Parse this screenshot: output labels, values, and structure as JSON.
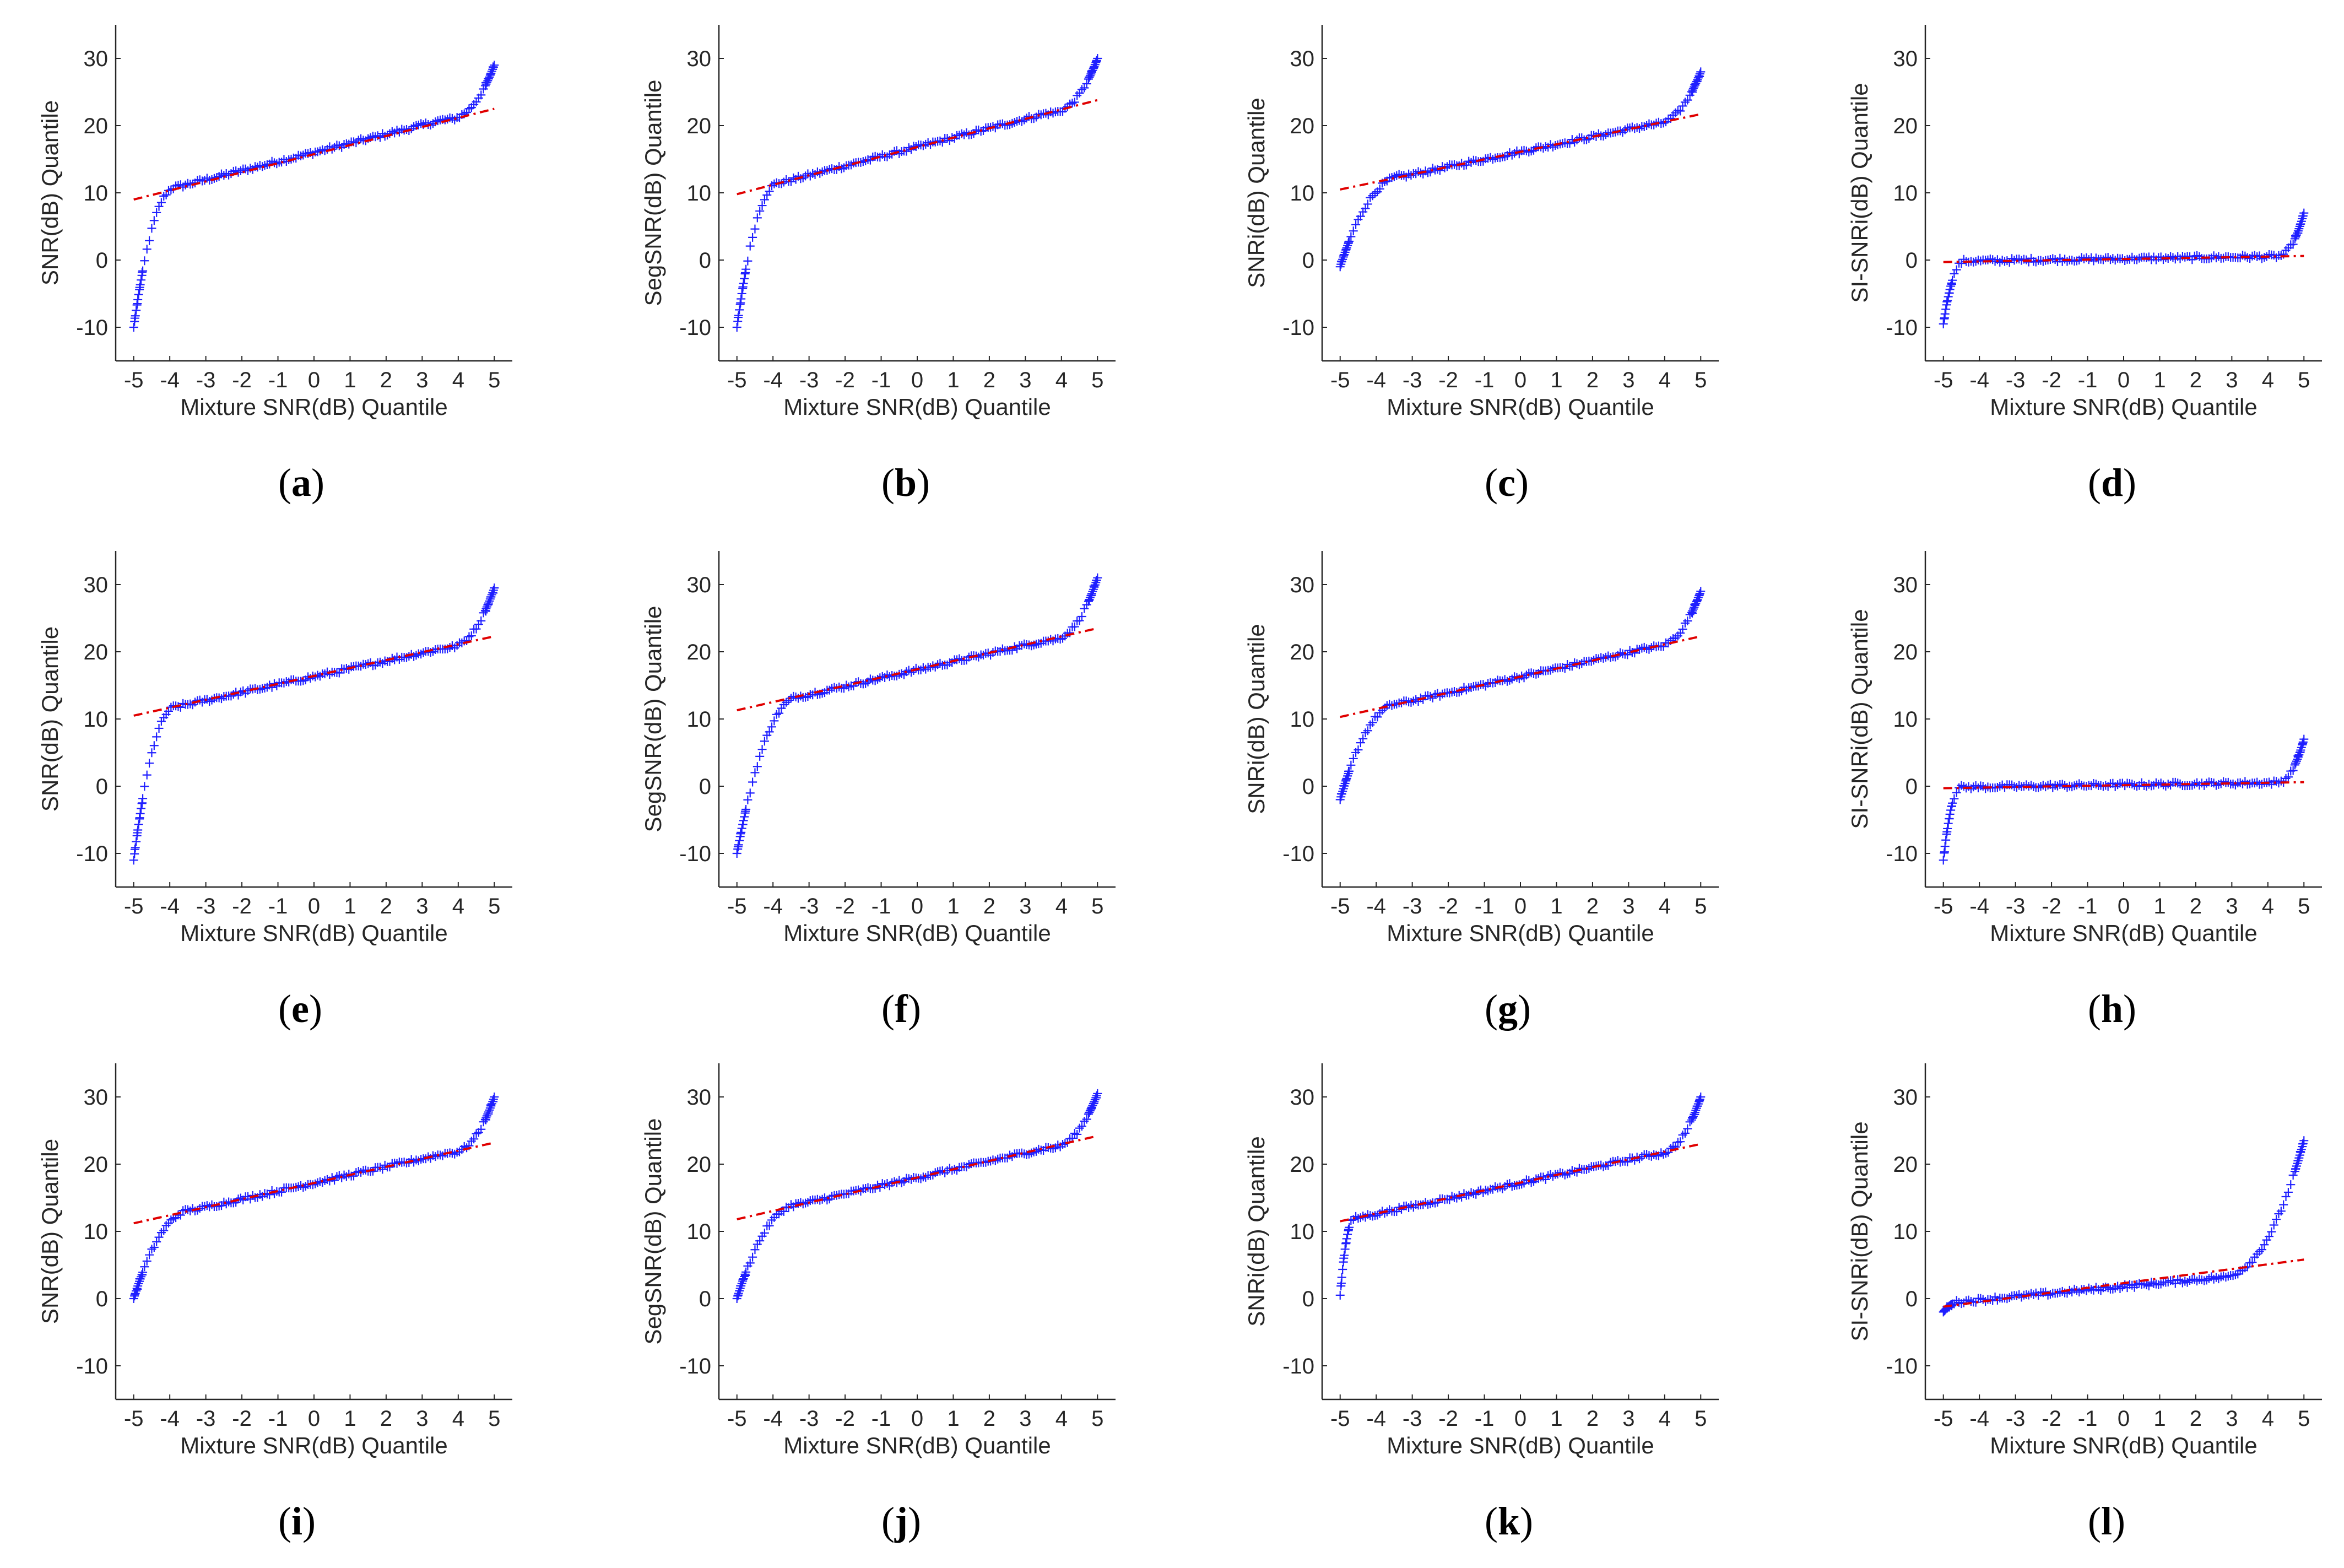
{
  "figure": {
    "colors": {
      "points": "#1f1fff",
      "fit": "#e00000",
      "axis": "#262626"
    }
  },
  "chart_data": [
    {
      "id": "a",
      "type": "scatter",
      "label": "a",
      "xlabel": "Mixture SNR(dB) Quantile",
      "ylabel": "SNR(dB) Quantile",
      "xlim": [
        -5.5,
        5.5
      ],
      "ylim": [
        -15,
        35
      ],
      "xticks": [
        -5,
        -4,
        -3,
        -2,
        -1,
        0,
        1,
        2,
        3,
        4,
        5
      ],
      "yticks": [
        -10,
        0,
        10,
        20,
        30
      ],
      "curve": {
        "xmin": -5,
        "xmax": 5,
        "median": 16.0,
        "slope": 1.35,
        "lowStart": -10,
        "lowKnee": -3.8,
        "highEnd": 29,
        "highKnee": 3.6
      },
      "fit": {
        "x": [
          -5,
          5
        ],
        "y": [
          9.0,
          22.5
        ]
      }
    },
    {
      "id": "b",
      "type": "scatter",
      "label": "b",
      "xlabel": "Mixture SNR(dB) Quantile",
      "ylabel": "SegSNR(dB) Quantile",
      "xlim": [
        -5.5,
        5.5
      ],
      "ylim": [
        -15,
        35
      ],
      "xticks": [
        -5,
        -4,
        -3,
        -2,
        -1,
        0,
        1,
        2,
        3,
        4,
        5
      ],
      "yticks": [
        -10,
        0,
        10,
        20,
        30
      ],
      "curve": {
        "xmin": -5,
        "xmax": 5,
        "median": 16.8,
        "slope": 1.4,
        "lowStart": -10,
        "lowKnee": -3.8,
        "highEnd": 30,
        "highKnee": 3.6
      },
      "fit": {
        "x": [
          -5,
          5
        ],
        "y": [
          9.8,
          23.8
        ]
      }
    },
    {
      "id": "c",
      "type": "scatter",
      "label": "c",
      "xlabel": "Mixture SNR(dB) Quantile",
      "ylabel": "SNRi(dB) Quantile",
      "xlim": [
        -5.5,
        5.5
      ],
      "ylim": [
        -15,
        35
      ],
      "xticks": [
        -5,
        -4,
        -3,
        -2,
        -1,
        0,
        1,
        2,
        3,
        4,
        5
      ],
      "yticks": [
        -10,
        0,
        10,
        20,
        30
      ],
      "curve": {
        "xmin": -5,
        "xmax": 5,
        "median": 16.1,
        "slope": 1.12,
        "lowStart": -1,
        "lowKnee": -3.2,
        "highEnd": 28,
        "highKnee": 3.6
      },
      "fit": {
        "x": [
          -5,
          5
        ],
        "y": [
          10.5,
          21.7
        ]
      }
    },
    {
      "id": "d",
      "type": "scatter",
      "label": "d",
      "xlabel": "Mixture SNR(dB) Quantile",
      "ylabel": "SI-SNRi(dB) Quantile",
      "xlim": [
        -5.5,
        5.5
      ],
      "ylim": [
        -15,
        35
      ],
      "xticks": [
        -5,
        -4,
        -3,
        -2,
        -1,
        0,
        1,
        2,
        3,
        4,
        5
      ],
      "yticks": [
        -10,
        0,
        10,
        20,
        30
      ],
      "curve": {
        "xmin": -5,
        "xmax": 5,
        "median": 0.2,
        "slope": 0.08,
        "lowStart": -9.5,
        "lowKnee": -4.4,
        "highEnd": 7,
        "highKnee": 4.2
      },
      "fit": {
        "x": [
          -5,
          5
        ],
        "y": [
          -0.3,
          0.6
        ]
      }
    },
    {
      "id": "e",
      "type": "scatter",
      "label": "e",
      "xlabel": "Mixture SNR(dB) Quantile",
      "ylabel": "SNR(dB) Quantile",
      "xlim": [
        -5.5,
        5.5
      ],
      "ylim": [
        -15,
        35
      ],
      "xticks": [
        -5,
        -4,
        -3,
        -2,
        -1,
        0,
        1,
        2,
        3,
        4,
        5
      ],
      "yticks": [
        -10,
        0,
        10,
        20,
        30
      ],
      "curve": {
        "xmin": -5,
        "xmax": 5,
        "median": 16.3,
        "slope": 1.18,
        "lowStart": -11,
        "lowKnee": -3.8,
        "highEnd": 29.5,
        "highKnee": 3.6
      },
      "fit": {
        "x": [
          -5,
          5
        ],
        "y": [
          10.5,
          22.3
        ]
      }
    },
    {
      "id": "f",
      "type": "scatter",
      "label": "f",
      "xlabel": "Mixture SNR(dB) Quantile",
      "ylabel": "SegSNR(dB) Quantile",
      "xlim": [
        -5.5,
        5.5
      ],
      "ylim": [
        -15,
        35
      ],
      "xticks": [
        -5,
        -4,
        -3,
        -2,
        -1,
        0,
        1,
        2,
        3,
        4,
        5
      ],
      "yticks": [
        -10,
        0,
        10,
        20,
        30
      ],
      "curve": {
        "xmin": -5,
        "xmax": 5,
        "median": 17.3,
        "slope": 1.22,
        "lowStart": -10,
        "lowKnee": -3.2,
        "highEnd": 31,
        "highKnee": 3.6
      },
      "fit": {
        "x": [
          -5,
          5
        ],
        "y": [
          11.3,
          23.5
        ]
      }
    },
    {
      "id": "g",
      "type": "scatter",
      "label": "g",
      "xlabel": "Mixture SNR(dB) Quantile",
      "ylabel": "SNRi(dB) Quantile",
      "xlim": [
        -5.5,
        5.5
      ],
      "ylim": [
        -15,
        35
      ],
      "xticks": [
        -5,
        -4,
        -3,
        -2,
        -1,
        0,
        1,
        2,
        3,
        4,
        5
      ],
      "yticks": [
        -10,
        0,
        10,
        20,
        30
      ],
      "curve": {
        "xmin": -5,
        "xmax": 5,
        "median": 16.3,
        "slope": 1.2,
        "lowStart": -2,
        "lowKnee": -3.3,
        "highEnd": 29,
        "highKnee": 3.6
      },
      "fit": {
        "x": [
          -5,
          5
        ],
        "y": [
          10.3,
          22.3
        ]
      }
    },
    {
      "id": "h",
      "type": "scatter",
      "label": "h",
      "xlabel": "Mixture SNR(dB) Quantile",
      "ylabel": "SI-SNRi(dB) Quantile",
      "xlim": [
        -5.5,
        5.5
      ],
      "ylim": [
        -15,
        35
      ],
      "xticks": [
        -5,
        -4,
        -3,
        -2,
        -1,
        0,
        1,
        2,
        3,
        4,
        5
      ],
      "yticks": [
        -10,
        0,
        10,
        20,
        30
      ],
      "curve": {
        "xmin": -5,
        "xmax": 5,
        "median": 0.2,
        "slope": 0.08,
        "lowStart": -11,
        "lowKnee": -4.5,
        "highEnd": 7,
        "highKnee": 4.2
      },
      "fit": {
        "x": [
          -5,
          5
        ],
        "y": [
          -0.3,
          0.6
        ]
      }
    },
    {
      "id": "i",
      "type": "scatter",
      "label": "i",
      "xlabel": "Mixture SNR(dB) Quantile",
      "ylabel": "SNR(dB) Quantile",
      "xlim": [
        -5.5,
        5.5
      ],
      "ylim": [
        -15,
        35
      ],
      "xticks": [
        -5,
        -4,
        -3,
        -2,
        -1,
        0,
        1,
        2,
        3,
        4,
        5
      ],
      "yticks": [
        -10,
        0,
        10,
        20,
        30
      ],
      "curve": {
        "xmin": -5,
        "xmax": 5,
        "median": 17.2,
        "slope": 1.2,
        "lowStart": 0,
        "lowKnee": -3.3,
        "highEnd": 30,
        "highKnee": 3.7
      },
      "fit": {
        "x": [
          -5,
          5
        ],
        "y": [
          11.2,
          23.2
        ]
      }
    },
    {
      "id": "j",
      "type": "scatter",
      "label": "j",
      "xlabel": "Mixture SNR(dB) Quantile",
      "ylabel": "SegSNR(dB) Quantile",
      "xlim": [
        -5.5,
        5.5
      ],
      "ylim": [
        -15,
        35
      ],
      "xticks": [
        -5,
        -4,
        -3,
        -2,
        -1,
        0,
        1,
        2,
        3,
        4,
        5
      ],
      "yticks": [
        -10,
        0,
        10,
        20,
        30
      ],
      "curve": {
        "xmin": -5,
        "xmax": 5,
        "median": 18.0,
        "slope": 1.22,
        "lowStart": 0,
        "lowKnee": -3.2,
        "highEnd": 30.5,
        "highKnee": 3.6
      },
      "fit": {
        "x": [
          -5,
          5
        ],
        "y": [
          11.8,
          24.2
        ]
      }
    },
    {
      "id": "k",
      "type": "scatter",
      "label": "k",
      "xlabel": "Mixture SNR(dB) Quantile",
      "ylabel": "SNRi(dB) Quantile",
      "xlim": [
        -5.5,
        5.5
      ],
      "ylim": [
        -15,
        35
      ],
      "xticks": [
        -5,
        -4,
        -3,
        -2,
        -1,
        0,
        1,
        2,
        3,
        4,
        5
      ],
      "yticks": [
        -10,
        0,
        10,
        20,
        30
      ],
      "curve": {
        "xmin": -5,
        "xmax": 5,
        "median": 17.2,
        "slope": 1.15,
        "lowStart": 0.5,
        "lowKnee": -4.6,
        "highEnd": 30,
        "highKnee": 3.7
      },
      "fit": {
        "x": [
          -5,
          5
        ],
        "y": [
          11.5,
          23.0
        ]
      }
    },
    {
      "id": "l",
      "type": "scatter",
      "label": "l",
      "xlabel": "Mixture SNR(dB) Quantile",
      "ylabel": "SI-SNRi(dB) Quantile",
      "xlim": [
        -5.5,
        5.5
      ],
      "ylim": [
        -15,
        35
      ],
      "xticks": [
        -5,
        -4,
        -3,
        -2,
        -1,
        0,
        1,
        2,
        3,
        4,
        5
      ],
      "yticks": [
        -10,
        0,
        10,
        20,
        30
      ],
      "curve": {
        "xmin": -5,
        "xmax": 5,
        "median": 1.8,
        "slope": 0.5,
        "lowStart": -2,
        "lowKnee": -4.5,
        "highEnd": 23.5,
        "highKnee": 2.5
      },
      "fit": {
        "x": [
          -5,
          5
        ],
        "y": [
          -1.2,
          5.8
        ]
      }
    }
  ]
}
